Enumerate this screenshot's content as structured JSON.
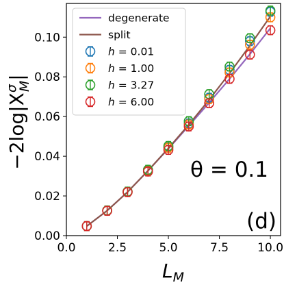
{
  "chart_data": {
    "type": "line",
    "panel_label": "(d)",
    "annotation": "θ = 0.1",
    "xlabel": {
      "base": "L",
      "sub": "M"
    },
    "ylabel": {
      "prefix": "−2log|X",
      "sup": "σ",
      "sub": "M",
      "suffix": "|"
    },
    "xlim": [
      0.0,
      10.5
    ],
    "ylim": [
      0.0,
      0.117
    ],
    "xticks": [
      0.0,
      2.5,
      5.0,
      7.5,
      10.0
    ],
    "xtick_labels": [
      "0.0",
      "2.5",
      "5.0",
      "7.5",
      "10.0"
    ],
    "yticks": [
      0.0,
      0.02,
      0.04,
      0.06,
      0.08,
      0.1
    ],
    "ytick_labels": [
      "0.00",
      "0.02",
      "0.04",
      "0.06",
      "0.08",
      "0.10"
    ],
    "grid": false,
    "legend_position": "top-left",
    "x": [
      1,
      2,
      3,
      4,
      5,
      6,
      7,
      8,
      9,
      10
    ],
    "lines": [
      {
        "name": "degenerate",
        "color": "#9467bd",
        "values": [
          0.0048,
          0.0126,
          0.022,
          0.0327,
          0.0438,
          0.0553,
          0.067,
          0.079,
          0.0915,
          0.1045
        ]
      },
      {
        "name": "split",
        "color": "#8c564b",
        "values": [
          0.0048,
          0.0126,
          0.022,
          0.0327,
          0.044,
          0.0559,
          0.0685,
          0.0818,
          0.0958,
          0.1105
        ]
      }
    ],
    "series": [
      {
        "name_prefix": "h",
        "name_value": "0.01",
        "color": "#1f77b4",
        "values": [
          0.0048,
          0.0126,
          0.0221,
          0.0329,
          0.0445,
          0.0565,
          0.0695,
          0.0835,
          0.098,
          0.1128
        ]
      },
      {
        "name_prefix": "h",
        "name_value": "1.00",
        "color": "#ff7f0e",
        "values": [
          0.0048,
          0.0126,
          0.0221,
          0.0328,
          0.0443,
          0.056,
          0.0688,
          0.0822,
          0.0962,
          0.11
        ]
      },
      {
        "name_prefix": "h",
        "name_value": "3.27",
        "color": "#2ca02c",
        "values": [
          0.0048,
          0.0127,
          0.0222,
          0.0332,
          0.0452,
          0.0577,
          0.0713,
          0.0852,
          0.0995,
          0.1134
        ]
      },
      {
        "name_prefix": "h",
        "name_value": "6.00",
        "color": "#d62728",
        "values": [
          0.0048,
          0.0125,
          0.0219,
          0.0323,
          0.0432,
          0.055,
          0.0667,
          0.079,
          0.0912,
          0.1035
        ]
      }
    ]
  }
}
